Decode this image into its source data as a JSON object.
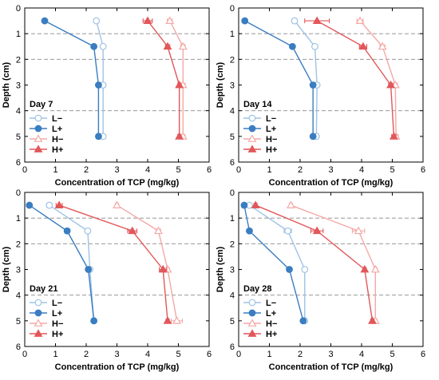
{
  "colors": {
    "L-": "#9ec3e6",
    "L+": "#3a7dc1",
    "H-": "#f4a9a6",
    "H+": "#e2575a",
    "dash": "#888888",
    "axis": "#000000"
  },
  "chart_data": [
    {
      "type": "line",
      "title": "Day 7",
      "xlabel": "Concentration of TCP (mg/kg)",
      "ylabel": "Depth (cm)",
      "xlim": [
        0,
        6
      ],
      "ylim": [
        0,
        6
      ],
      "y_inverted": true,
      "x_ticks": [
        "0",
        "1",
        "2",
        "3",
        "4",
        "5",
        "6"
      ],
      "y_ticks": [
        "0",
        "1",
        "2",
        "3",
        "4",
        "5",
        "6"
      ],
      "dashed_lines_depth": [
        1,
        2,
        4
      ],
      "legend_position": "lower-left",
      "depth": [
        0.5,
        1.5,
        3,
        5
      ],
      "series": [
        {
          "name": "L−",
          "marker": "circle-open",
          "values": [
            2.33,
            2.55,
            2.55,
            2.55
          ],
          "err": [
            0.07,
            0.05,
            0.05,
            0.05
          ]
        },
        {
          "name": "L+",
          "marker": "circle-filled",
          "values": [
            0.65,
            2.25,
            2.4,
            2.4
          ],
          "err": [
            0.03,
            0.05,
            0.03,
            0.03
          ]
        },
        {
          "name": "H−",
          "marker": "triangle-open",
          "values": [
            4.72,
            5.15,
            5.15,
            5.15
          ],
          "err": [
            0.08,
            0.07,
            0.07,
            0.07
          ]
        },
        {
          "name": "H+",
          "marker": "triangle-filled",
          "values": [
            4.0,
            4.65,
            5.03,
            5.03
          ],
          "err": [
            0.15,
            0.07,
            0.05,
            0.05
          ]
        }
      ]
    },
    {
      "type": "line",
      "title": "Day 14",
      "xlabel": "Concentration of TCP (mg/kg)",
      "ylabel": "Depth (cm)",
      "xlim": [
        0,
        6
      ],
      "ylim": [
        0,
        6
      ],
      "y_inverted": true,
      "x_ticks": [
        "0",
        "1",
        "2",
        "3",
        "4",
        "5",
        "6"
      ],
      "y_ticks": [
        "0",
        "1",
        "2",
        "3",
        "4",
        "5",
        "6"
      ],
      "dashed_lines_depth": [
        1,
        2,
        4
      ],
      "legend_position": "lower-left",
      "depth": [
        0.5,
        1.5,
        3,
        5
      ],
      "series": [
        {
          "name": "L−",
          "marker": "circle-open",
          "values": [
            1.82,
            2.48,
            2.55,
            2.53
          ],
          "err": [
            0.07,
            0.05,
            0.07,
            0.05
          ]
        },
        {
          "name": "L+",
          "marker": "circle-filled",
          "values": [
            0.2,
            1.75,
            2.42,
            2.42
          ],
          "err": [
            0.03,
            0.05,
            0.05,
            0.05
          ]
        },
        {
          "name": "H−",
          "marker": "triangle-open",
          "values": [
            3.95,
            4.68,
            5.1,
            5.12
          ],
          "err": [
            0.1,
            0.08,
            0.07,
            0.07
          ]
        },
        {
          "name": "H+",
          "marker": "triangle-filled",
          "values": [
            2.55,
            4.05,
            4.95,
            5.05
          ],
          "err": [
            0.4,
            0.12,
            0.07,
            0.07
          ]
        }
      ]
    },
    {
      "type": "line",
      "title": "Day 21",
      "xlabel": "Concentration of TCP (mg/kg)",
      "ylabel": "Depth (cm)",
      "xlim": [
        0,
        6
      ],
      "ylim": [
        0,
        6
      ],
      "y_inverted": true,
      "x_ticks": [
        "0",
        "1",
        "2",
        "3",
        "4",
        "5",
        "6"
      ],
      "y_ticks": [
        "0",
        "1",
        "2",
        "3",
        "4",
        "5",
        "6"
      ],
      "dashed_lines_depth": [
        1,
        2,
        4
      ],
      "legend_position": "lower-left",
      "depth": [
        0.5,
        1.5,
        3,
        5
      ],
      "series": [
        {
          "name": "L−",
          "marker": "circle-open",
          "values": [
            0.8,
            2.05,
            2.12,
            2.25
          ],
          "err": [
            0.08,
            0.05,
            0.05,
            0.05
          ]
        },
        {
          "name": "L+",
          "marker": "circle-filled",
          "values": [
            0.15,
            1.38,
            2.07,
            2.25
          ],
          "err": [
            0.02,
            0.08,
            0.05,
            0.05
          ]
        },
        {
          "name": "H−",
          "marker": "triangle-open",
          "values": [
            3.0,
            4.35,
            4.65,
            4.95
          ],
          "err": [
            0.05,
            0.07,
            0.05,
            0.18
          ]
        },
        {
          "name": "H+",
          "marker": "triangle-filled",
          "values": [
            1.12,
            3.5,
            4.5,
            4.65
          ],
          "err": [
            0.1,
            0.15,
            0.12,
            0.05
          ]
        }
      ]
    },
    {
      "type": "line",
      "title": "Day 28",
      "xlabel": "Concentration of TCP (mg/kg)",
      "ylabel": "Depth (cm)",
      "xlim": [
        0,
        6
      ],
      "ylim": [
        0,
        6
      ],
      "y_inverted": true,
      "x_ticks": [
        "0",
        "1",
        "2",
        "3",
        "4",
        "5",
        "6"
      ],
      "y_ticks": [
        "0",
        "1",
        "2",
        "3",
        "4",
        "5",
        "6"
      ],
      "dashed_lines_depth": [
        1,
        2,
        4
      ],
      "legend_position": "lower-left",
      "depth": [
        0.5,
        1.5,
        3,
        5
      ],
      "series": [
        {
          "name": "L−",
          "marker": "circle-open",
          "values": [
            0.35,
            1.6,
            2.15,
            2.15
          ],
          "err": [
            0.05,
            0.12,
            0.05,
            0.05
          ]
        },
        {
          "name": "L+",
          "marker": "circle-filled",
          "values": [
            0.18,
            0.35,
            1.65,
            2.1
          ],
          "err": [
            0.02,
            0.03,
            0.05,
            0.05
          ]
        },
        {
          "name": "H−",
          "marker": "triangle-open",
          "values": [
            1.7,
            3.9,
            4.45,
            4.45
          ],
          "err": [
            0.05,
            0.2,
            0.05,
            0.05
          ]
        },
        {
          "name": "H+",
          "marker": "triangle-filled",
          "values": [
            0.55,
            2.55,
            4.1,
            4.35
          ],
          "err": [
            0.05,
            0.2,
            0.05,
            0.05
          ]
        }
      ]
    }
  ]
}
